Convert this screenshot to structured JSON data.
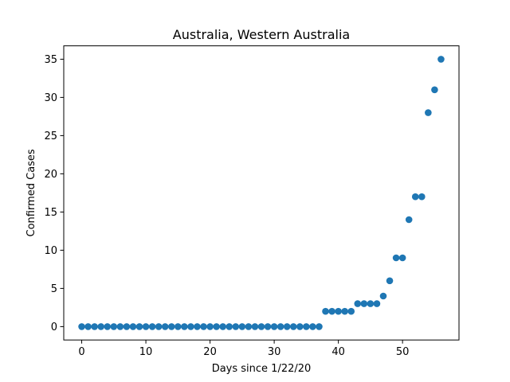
{
  "chart_data": {
    "type": "scatter",
    "title": "Australia, Western Australia",
    "xlabel": "Days since 1/22/20",
    "ylabel": "Confirmed Cases",
    "xlim": [
      -2.8,
      58.8
    ],
    "ylim": [
      -1.75,
      36.75
    ],
    "x_ticks": [
      0,
      10,
      20,
      30,
      40,
      50
    ],
    "y_ticks": [
      0,
      5,
      10,
      15,
      20,
      25,
      30,
      35
    ],
    "grid": false,
    "marker_color": "#1f77b4",
    "series": [
      {
        "x": [
          0,
          1,
          2,
          3,
          4,
          5,
          6,
          7,
          8,
          9,
          10,
          11,
          12,
          13,
          14,
          15,
          16,
          17,
          18,
          19,
          20,
          21,
          22,
          23,
          24,
          25,
          26,
          27,
          28,
          29,
          30,
          31,
          32,
          33,
          34,
          35,
          36,
          37,
          38,
          39,
          40,
          41,
          42,
          43,
          44,
          45,
          46,
          47,
          48,
          49,
          50,
          51,
          52,
          53,
          54,
          55,
          56
        ],
        "y": [
          0,
          0,
          0,
          0,
          0,
          0,
          0,
          0,
          0,
          0,
          0,
          0,
          0,
          0,
          0,
          0,
          0,
          0,
          0,
          0,
          0,
          0,
          0,
          0,
          0,
          0,
          0,
          0,
          0,
          0,
          0,
          0,
          0,
          0,
          0,
          0,
          0,
          0,
          2,
          2,
          2,
          2,
          2,
          3,
          3,
          3,
          3,
          4,
          6,
          9,
          9,
          14,
          17,
          17,
          28,
          31,
          35
        ]
      }
    ]
  }
}
